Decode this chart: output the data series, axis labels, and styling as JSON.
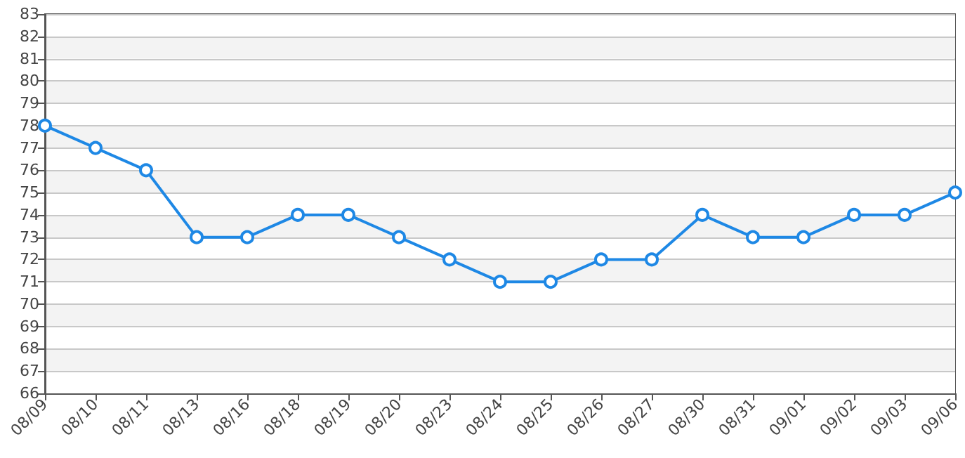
{
  "chart_data": {
    "type": "line",
    "categories": [
      "08/09",
      "08/10",
      "08/11",
      "08/13",
      "08/16",
      "08/18",
      "08/19",
      "08/20",
      "08/23",
      "08/24",
      "08/25",
      "08/26",
      "08/27",
      "08/30",
      "08/31",
      "09/01",
      "09/02",
      "09/03",
      "09/06"
    ],
    "series": [
      {
        "color": "#1e88e5",
        "values": [
          78,
          77,
          76,
          73,
          73,
          74,
          74,
          73,
          72,
          71,
          71,
          72,
          72,
          74,
          73,
          73,
          74,
          74,
          75
        ]
      }
    ],
    "ylim": [
      66,
      83
    ],
    "yticks": [
      66,
      67,
      68,
      69,
      70,
      71,
      72,
      73,
      74,
      75,
      76,
      77,
      78,
      79,
      80,
      81,
      82,
      83
    ],
    "grid": "y",
    "marker": "circle",
    "line_style": "solid"
  }
}
